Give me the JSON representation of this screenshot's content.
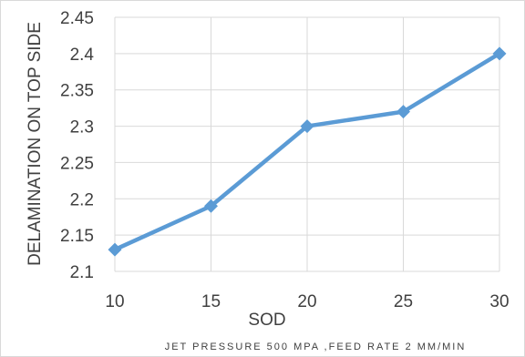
{
  "chart_data": {
    "type": "line",
    "x": [
      10,
      15,
      20,
      25,
      30
    ],
    "series": [
      {
        "values": [
          2.13,
          2.19,
          2.3,
          2.32,
          2.4
        ]
      }
    ],
    "xlabel": "SOD",
    "ylabel": "DELAMINATION ON TOP SIDE",
    "caption": "JET PRESSURE 500 MPA ,FEED RATE 2 MM/MIN",
    "xlim": [
      10,
      30
    ],
    "ylim": [
      2.1,
      2.45
    ],
    "xticks": [
      "10",
      "15",
      "20",
      "25",
      "30"
    ],
    "yticks": [
      "2.1",
      "2.15",
      "2.2",
      "2.25",
      "2.3",
      "2.35",
      "2.4",
      "2.45"
    ],
    "grid": true,
    "legend": false,
    "marker": "diamond",
    "line_color": "#5B9BD5",
    "grid_color": "#d9d9d9"
  }
}
